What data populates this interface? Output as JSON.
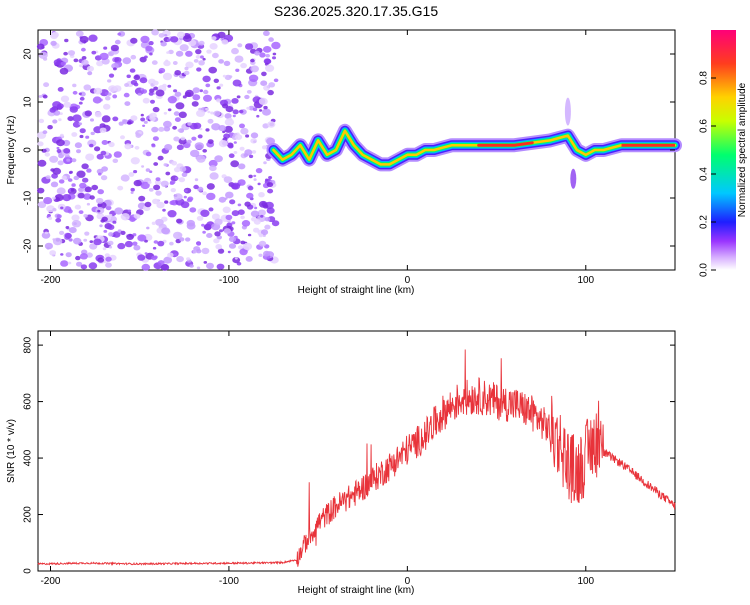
{
  "title": "S236.2025.320.17.35.G15",
  "chart_data": [
    {
      "type": "heatmap",
      "xlabel": "Height of straight line (km)",
      "ylabel": "Frequency (Hz)",
      "xlim": [
        -207,
        150
      ],
      "ylim": [
        -25,
        25
      ],
      "xticks": [
        -200,
        -100,
        0,
        100
      ],
      "yticks": [
        -20,
        -10,
        0,
        10,
        20
      ],
      "noise_region_x": [
        -207,
        -72
      ],
      "ridge": {
        "x": [
          -75,
          -70,
          -65,
          -60,
          -55,
          -50,
          -45,
          -40,
          -35,
          -30,
          -25,
          -20,
          -15,
          -10,
          -5,
          0,
          5,
          10,
          15,
          20,
          25,
          30,
          40,
          50,
          60,
          70,
          80,
          85,
          90,
          95,
          100,
          105,
          110,
          120,
          130,
          140,
          150
        ],
        "y": [
          0,
          -2,
          -1,
          1,
          -2,
          2,
          -1,
          0,
          4,
          1,
          -1,
          -2,
          -3,
          -3,
          -2,
          -1,
          -1,
          0,
          0,
          0.5,
          1,
          1,
          1,
          1,
          1,
          1.5,
          2,
          2.5,
          3,
          0,
          -1,
          0,
          0,
          1,
          1,
          1,
          1
        ]
      },
      "colorbar": {
        "label": "Normalized spectral amplitude",
        "range": [
          0,
          1
        ],
        "ticks": [
          "0.0",
          "0.2",
          "0.4",
          "0.6",
          "0.8"
        ]
      }
    },
    {
      "type": "line",
      "xlabel": "Height of straight line (km)",
      "ylabel": "SNR (10 * v/v)",
      "xlim": [
        -207,
        150
      ],
      "ylim": [
        0,
        850
      ],
      "xticks": [
        -200,
        -100,
        0,
        100
      ],
      "yticks": [
        0,
        200,
        400,
        600,
        800
      ],
      "series": [
        {
          "name": "SNR",
          "color": "#e8333a",
          "x": [
            -207,
            -180,
            -150,
            -120,
            -90,
            -70,
            -62,
            -58,
            -50,
            -40,
            -30,
            -20,
            -10,
            0,
            10,
            20,
            30,
            40,
            50,
            60,
            70,
            80,
            85,
            90,
            95,
            100,
            105,
            110,
            120,
            130,
            140,
            150
          ],
          "y": [
            25,
            28,
            25,
            27,
            28,
            30,
            40,
            90,
            170,
            230,
            270,
            320,
            370,
            430,
            480,
            560,
            610,
            620,
            600,
            590,
            560,
            500,
            460,
            380,
            350,
            400,
            470,
            420,
            380,
            330,
            280,
            230
          ]
        }
      ]
    }
  ]
}
